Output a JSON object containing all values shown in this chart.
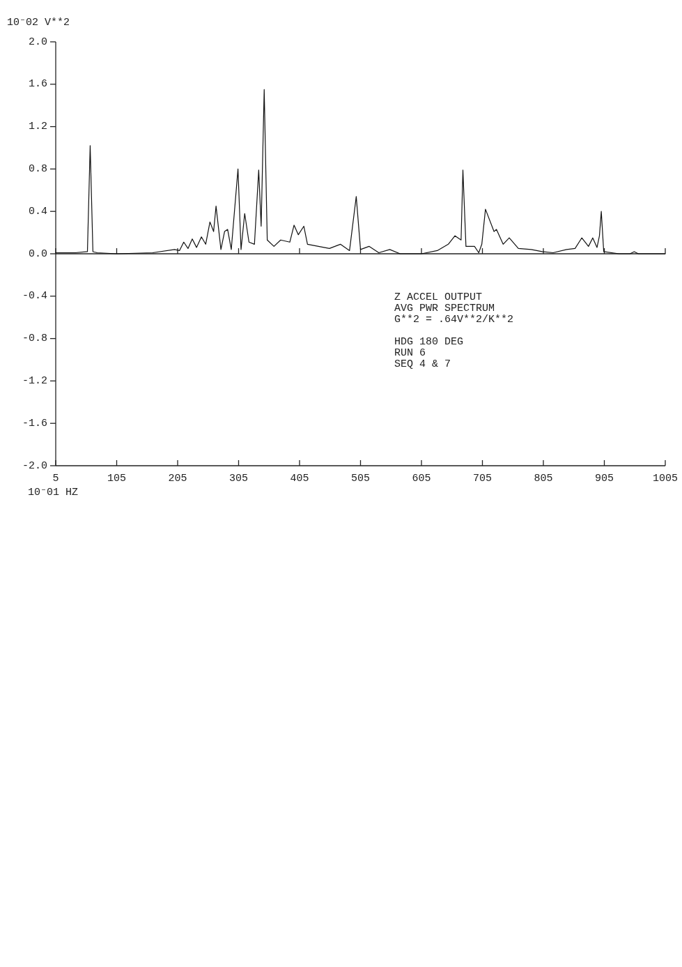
{
  "chart_data": {
    "type": "line",
    "xlabel": "10⁻01 HZ",
    "ylabel": "10⁻02 V**2",
    "annotations": [
      "Z ACCEL OUTPUT",
      "AVG PWR SPECTRUM",
      "G**2 = .64V**2/K**2",
      "HDG 180 DEG",
      "RUN 6",
      "SEQ 4 & 7"
    ],
    "x": [
      5,
      37,
      57,
      61.5,
      66,
      73,
      105,
      164,
      200,
      208,
      215,
      222,
      229,
      236,
      244,
      251,
      258,
      264,
      268,
      276,
      282,
      287,
      293,
      304,
      309,
      315,
      322,
      331,
      338,
      342,
      347,
      352,
      363,
      374,
      389,
      396,
      403,
      412,
      418,
      436,
      454,
      472,
      487,
      498,
      505,
      519,
      535,
      553,
      570,
      605,
      631,
      649,
      660,
      670,
      673,
      678,
      692,
      699,
      704,
      710,
      724,
      728,
      739,
      749,
      764,
      785,
      803,
      821,
      843,
      857,
      868,
      879,
      886,
      893,
      897,
      900,
      904,
      929,
      947,
      954,
      961,
      1005
    ],
    "series": [
      {
        "color": "#111111",
        "values": [
          0.01,
          0.01,
          0.02,
          1.02,
          0.02,
          0.01,
          0.0,
          0.01,
          0.04,
          0.03,
          0.11,
          0.05,
          0.14,
          0.06,
          0.16,
          0.09,
          0.3,
          0.21,
          0.45,
          0.04,
          0.21,
          0.23,
          0.04,
          0.8,
          0.04,
          0.38,
          0.11,
          0.09,
          0.79,
          0.26,
          1.55,
          0.13,
          0.07,
          0.13,
          0.11,
          0.27,
          0.18,
          0.26,
          0.09,
          0.07,
          0.05,
          0.09,
          0.03,
          0.54,
          0.04,
          0.07,
          0.01,
          0.04,
          0.0,
          0.0,
          0.03,
          0.09,
          0.17,
          0.13,
          0.79,
          0.07,
          0.07,
          0.01,
          0.09,
          0.42,
          0.21,
          0.23,
          0.09,
          0.15,
          0.05,
          0.04,
          0.02,
          0.01,
          0.04,
          0.05,
          0.15,
          0.07,
          0.15,
          0.06,
          0.17,
          0.4,
          0.02,
          0.0,
          0.0,
          0.02,
          0.0,
          0.0
        ]
      }
    ],
    "xlim": [
      5,
      1005
    ],
    "xticks": [
      5,
      105,
      205,
      305,
      405,
      505,
      605,
      705,
      805,
      905,
      1005
    ],
    "ylim": [
      -2,
      2
    ],
    "yticks": [
      {
        "value": 2,
        "label": "2.0"
      },
      {
        "value": 1.6,
        "label": "1.6"
      },
      {
        "value": 1.2,
        "label": "1.2"
      },
      {
        "value": 0.8,
        "label": "0.8"
      },
      {
        "value": 0.4,
        "label": "0.4"
      },
      {
        "value": 0,
        "label": "0.0"
      },
      {
        "value": -0.4,
        "label": "-0.4"
      },
      {
        "value": -0.8,
        "label": "-0.8"
      },
      {
        "value": -1.2,
        "label": "-1.2"
      },
      {
        "value": -1.6,
        "label": "-1.6"
      },
      {
        "value": -2,
        "label": "-2.0"
      }
    ],
    "ref_lines": [
      {
        "axis": "y",
        "value": 0
      }
    ],
    "grid": false,
    "marker": "none",
    "line_style": "solid"
  }
}
